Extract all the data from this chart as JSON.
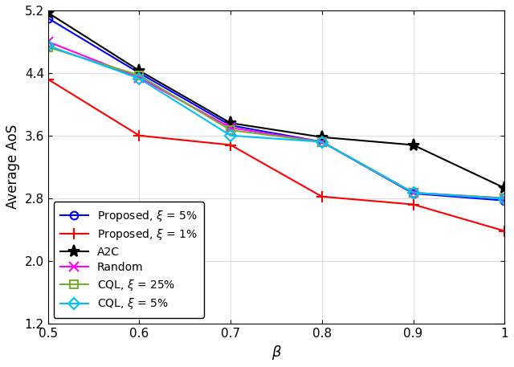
{
  "x": [
    0.5,
    0.6,
    0.7,
    0.8,
    0.9,
    1.0
  ],
  "series": [
    {
      "label": "Proposed, $\\xi$ = 5%",
      "y": [
        5.1,
        4.4,
        3.73,
        3.52,
        2.86,
        2.77
      ],
      "color": "blue",
      "marker": "o",
      "markersize": 7,
      "linewidth": 1.5,
      "hollow": true
    },
    {
      "label": "Proposed, $\\xi$ = 1%",
      "y": [
        4.32,
        3.6,
        3.48,
        2.82,
        2.72,
        2.38
      ],
      "color": "red",
      "marker": "+",
      "markersize": 10,
      "linewidth": 1.5,
      "hollow": false
    },
    {
      "label": "A2C",
      "y": [
        5.17,
        4.43,
        3.76,
        3.58,
        3.48,
        2.93
      ],
      "color": "black",
      "marker": "*",
      "markersize": 11,
      "linewidth": 1.5,
      "hollow": false
    },
    {
      "label": "Random",
      "y": [
        4.8,
        4.34,
        3.7,
        3.52,
        2.87,
        2.8
      ],
      "color": "magenta",
      "marker": "x",
      "markersize": 9,
      "linewidth": 1.5,
      "hollow": false
    },
    {
      "label": "CQL, $\\xi$ = 25%",
      "y": [
        4.73,
        4.37,
        3.67,
        3.52,
        2.87,
        2.8
      ],
      "color": "#77AC30",
      "marker": "s",
      "markersize": 7,
      "linewidth": 1.5,
      "hollow": true
    },
    {
      "label": "CQL, $\\xi$ = 5%",
      "y": [
        4.75,
        4.33,
        3.6,
        3.52,
        2.87,
        2.79
      ],
      "color": "#00BFFF",
      "marker": "D",
      "markersize": 7,
      "linewidth": 1.5,
      "hollow": true
    }
  ],
  "xlabel": "$\\beta$",
  "ylabel": "Average AoS",
  "xlim": [
    0.5,
    1.0
  ],
  "ylim": [
    1.2,
    5.2
  ],
  "yticks": [
    1.2,
    2.0,
    2.8,
    3.6,
    4.4,
    5.2
  ],
  "xticks": [
    0.5,
    0.6,
    0.7,
    0.8,
    0.9,
    1.0
  ],
  "xtick_labels": [
    "0.5",
    "0.6",
    "0.7",
    "0.8",
    "0.9",
    "1"
  ],
  "grid": true,
  "legend_loc": "lower left",
  "figsize": [
    6.4,
    4.57
  ],
  "dpi": 100
}
